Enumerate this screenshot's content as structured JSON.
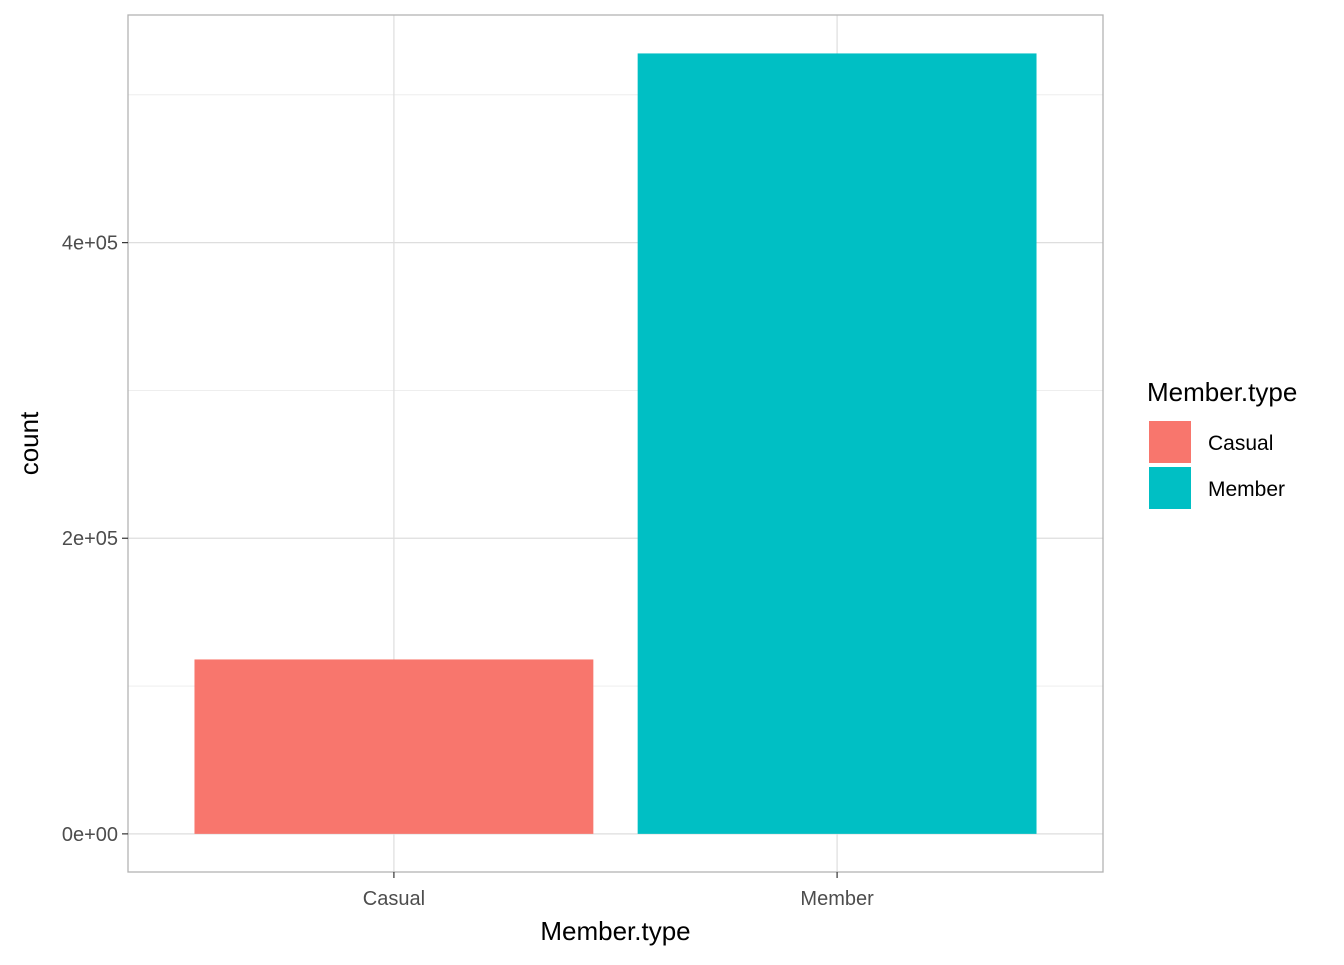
{
  "chart_data": {
    "type": "bar",
    "categories": [
      "Casual",
      "Member"
    ],
    "values": [
      118000,
      528000
    ],
    "colors": [
      "#F8766D",
      "#00BFC4"
    ],
    "xlabel": "Member.type",
    "ylabel": "count",
    "ylim": [
      -25800,
      554000
    ],
    "yticks": [
      0,
      200000,
      400000
    ],
    "ytick_labels": [
      "0e+00",
      "2e+05",
      "4e+05"
    ],
    "grid": true,
    "legend": {
      "title": "Member.type",
      "placement": "right",
      "entries": [
        "Casual",
        "Member"
      ]
    }
  }
}
